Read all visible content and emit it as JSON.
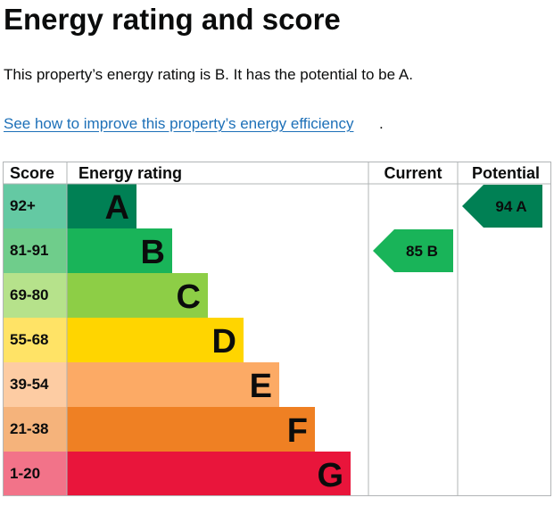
{
  "page": {
    "title": "Energy rating and score",
    "summary": "This property’s energy rating is B. It has the potential to be A.",
    "link_text": "See how to improve this property’s energy efficiency",
    "link_suffix": "."
  },
  "chart_data": {
    "type": "table",
    "headers": {
      "score": "Score",
      "rating": "Energy rating",
      "current": "Current",
      "potential": "Potential"
    },
    "bands": [
      {
        "range": "92+",
        "letter": "A",
        "color": "#008054",
        "score_bg": "#64c9a3"
      },
      {
        "range": "81-91",
        "letter": "B",
        "color": "#19b459",
        "score_bg": "#6fcd8b"
      },
      {
        "range": "69-80",
        "letter": "C",
        "color": "#8dce46",
        "score_bg": "#b6e28b"
      },
      {
        "range": "55-68",
        "letter": "D",
        "color": "#ffd500",
        "score_bg": "#ffe366"
      },
      {
        "range": "39-54",
        "letter": "E",
        "color": "#fcaa65",
        "score_bg": "#fdcca3"
      },
      {
        "range": "21-38",
        "letter": "F",
        "color": "#ef8023",
        "score_bg": "#f5b37b"
      },
      {
        "range": "1-20",
        "letter": "G",
        "color": "#e9153b",
        "score_bg": "#f27389"
      }
    ],
    "current": {
      "score": 85,
      "letter": "B",
      "label": "85  B",
      "color": "#19b459"
    },
    "potential": {
      "score": 94,
      "letter": "A",
      "label": "94  A",
      "color": "#008054"
    }
  }
}
